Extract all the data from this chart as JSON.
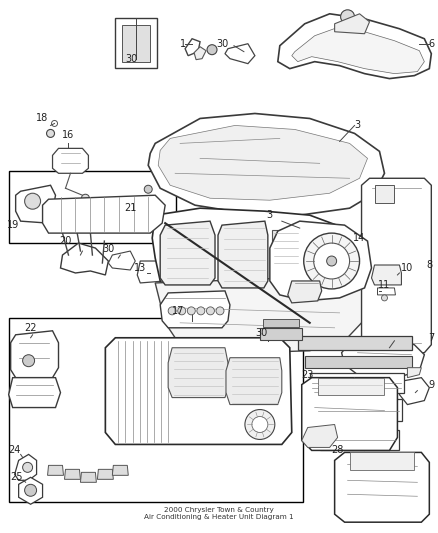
{
  "title": "2000 Chrysler Town & Country\nAir Conditioning & Heater Unit Diagram 1",
  "background_color": "#ffffff",
  "line_color": "#555555",
  "text_color": "#222222",
  "border_color": "#000000",
  "fig_width": 4.38,
  "fig_height": 5.33,
  "dpi": 100,
  "label_fs": 7.0
}
